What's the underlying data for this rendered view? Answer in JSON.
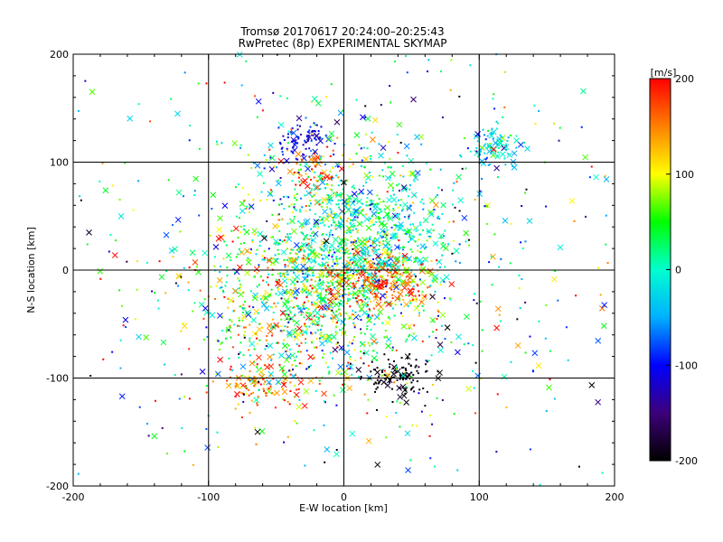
{
  "chart_data": {
    "type": "scatter",
    "title": "Tromsø 20170617 20:24:00–20:25:43",
    "subtitle": "RwPretec (8p) EXPERIMENTAL SKYMAP",
    "xlabel": "E-W location [km]",
    "ylabel": "N-S location [km]",
    "xlim": [
      -200,
      200
    ],
    "ylim": [
      -200,
      200
    ],
    "x_ticks": [
      -200,
      -100,
      0,
      100,
      200
    ],
    "y_ticks": [
      -200,
      -100,
      0,
      100,
      200
    ],
    "x_tick_labels": [
      "-200",
      "-100",
      "0",
      "100",
      "200"
    ],
    "y_tick_labels": [
      "-200",
      "-100",
      "0",
      "100",
      "200"
    ],
    "grid": true,
    "colorbar": {
      "label": "[m/s]",
      "range": [
        -200,
        200
      ],
      "ticks": [
        200,
        100,
        0,
        -100,
        -200
      ],
      "tick_labels": [
        "200",
        "100",
        "0",
        "-100",
        "-200"
      ],
      "colormap": [
        "#000000",
        "#3d007a",
        "#0000ff",
        "#00b0ff",
        "#00ffd0",
        "#00ff00",
        "#ffff00",
        "#ff8000",
        "#ff0000"
      ]
    },
    "clusters": [
      {
        "x": 0,
        "y": 20,
        "sx": 35,
        "sy": 45,
        "v": 10,
        "sv": 60,
        "n": 900
      },
      {
        "x": -30,
        "y": -30,
        "sx": 40,
        "sy": 45,
        "v": 80,
        "sv": 80,
        "n": 700
      },
      {
        "x": 30,
        "y": -10,
        "sx": 20,
        "sy": 12,
        "v": 170,
        "sv": 40,
        "n": 200
      },
      {
        "x": -30,
        "y": 120,
        "sx": 10,
        "sy": 8,
        "v": -110,
        "sv": 20,
        "n": 90
      },
      {
        "x": 110,
        "y": 115,
        "sx": 9,
        "sy": 12,
        "v": -30,
        "sv": 40,
        "n": 90
      },
      {
        "x": 40,
        "y": -100,
        "sx": 12,
        "sy": 10,
        "v": -195,
        "sv": 10,
        "n": 110
      },
      {
        "x": -60,
        "y": -105,
        "sx": 15,
        "sy": 10,
        "v": 160,
        "sv": 40,
        "n": 90
      },
      {
        "x": -20,
        "y": 90,
        "sx": 10,
        "sy": 10,
        "v": 170,
        "sv": 50,
        "n": 60
      },
      {
        "x": 40,
        "y": 40,
        "sx": 25,
        "sy": 25,
        "v": 0,
        "sv": 30,
        "n": 120
      },
      {
        "x": 0,
        "y": 0,
        "sx": 110,
        "sy": 110,
        "v": 0,
        "sv": 110,
        "n": 700
      }
    ]
  }
}
